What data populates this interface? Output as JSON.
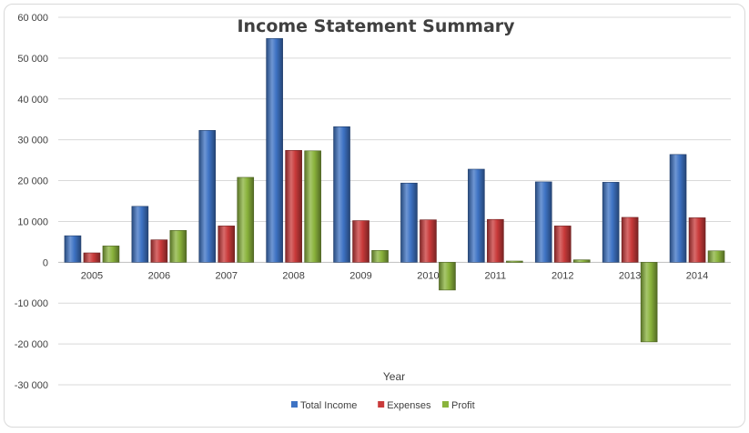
{
  "chart_data": {
    "type": "bar",
    "title": "Income Statement Summary",
    "xlabel": "Year",
    "ylabel": "",
    "categories": [
      "2005",
      "2006",
      "2007",
      "2008",
      "2009",
      "2010",
      "2011",
      "2012",
      "2013",
      "2014"
    ],
    "series": [
      {
        "name": "Total Income",
        "color": "#3e73c4",
        "values": [
          6500,
          13700,
          32300,
          54800,
          33200,
          19400,
          22800,
          19700,
          19600,
          26400
        ]
      },
      {
        "name": "Expenses",
        "color": "#c93a3a",
        "values": [
          2300,
          5500,
          8900,
          27400,
          10200,
          10400,
          10500,
          8900,
          11000,
          10900
        ]
      },
      {
        "name": "Profit",
        "color": "#8ab33c",
        "values": [
          4000,
          7800,
          20800,
          27300,
          2900,
          -6800,
          300,
          600,
          -19500,
          2800
        ]
      }
    ],
    "ylim": [
      -30000,
      60000
    ],
    "yticks": [
      -30000,
      -20000,
      -10000,
      0,
      10000,
      20000,
      30000,
      40000,
      50000,
      60000
    ],
    "ytick_labels": [
      "-30 000",
      "-20 000",
      "-10 000",
      "0",
      "10 000",
      "20 000",
      "30 000",
      "40 000",
      "50 000",
      "60 000"
    ],
    "grid": true,
    "legend_position": "bottom"
  }
}
